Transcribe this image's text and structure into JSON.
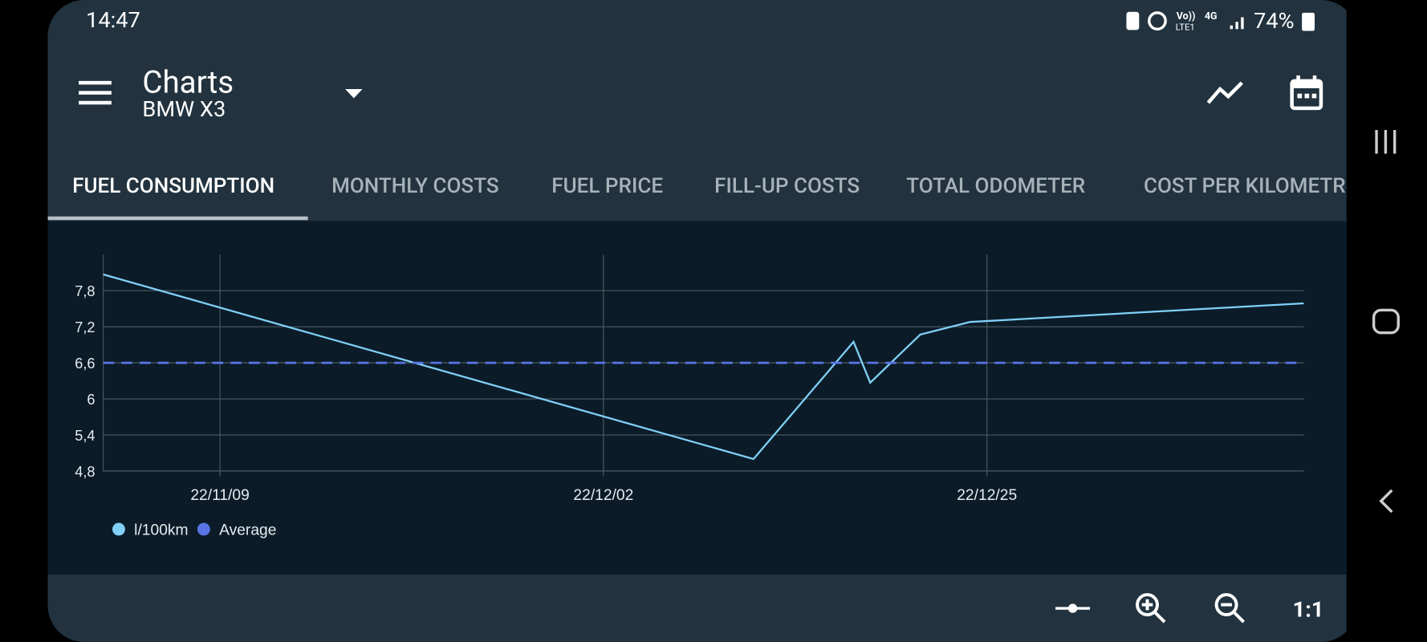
{
  "status_bar": {
    "time": "14:47",
    "network": "Vo))",
    "network_sub": "LTE1",
    "signal_type": "4G",
    "battery": "74%"
  },
  "app_bar": {
    "title": "Charts",
    "subtitle": "BMW X3"
  },
  "tabs": {
    "items": [
      "FUEL CONSUMPTION",
      "MONTHLY COSTS",
      "FUEL PRICE",
      "FILL-UP COSTS",
      "TOTAL ODOMETER",
      "COST PER KILOMETRE"
    ],
    "active": 0
  },
  "chart_data": {
    "type": "line",
    "xlim": [
      "22/11/02",
      "23/01/13"
    ],
    "xticks": [
      "22/11/09",
      "22/12/02",
      "22/12/25"
    ],
    "ylim": [
      4.8,
      8.4
    ],
    "yticks": [
      {
        "value": 4.8,
        "label": "4,8"
      },
      {
        "value": 5.4,
        "label": "5,4"
      },
      6,
      {
        "value": 6.6,
        "label": "6,6"
      },
      {
        "value": 7.2,
        "label": "7,2"
      },
      {
        "value": 7.8,
        "label": "7,8"
      }
    ],
    "grid": true,
    "legend": "bottom-left",
    "series": [
      {
        "name": "l/100km",
        "color": "#81d0f7",
        "dash": false,
        "x": [
          "22/11/02",
          "22/12/11",
          "22/12/17",
          "22/12/18",
          "22/12/21",
          "22/12/24",
          "23/01/13"
        ],
        "values": [
          8.07,
          5.0,
          6.95,
          6.27,
          7.07,
          7.28,
          7.59
        ]
      },
      {
        "name": "Average",
        "color": "#5a74e6",
        "dash": true,
        "x": [
          "22/11/02",
          "23/01/13"
        ],
        "values": [
          6.6,
          6.6
        ]
      }
    ]
  },
  "toolbar": {
    "reset": "1:1"
  }
}
